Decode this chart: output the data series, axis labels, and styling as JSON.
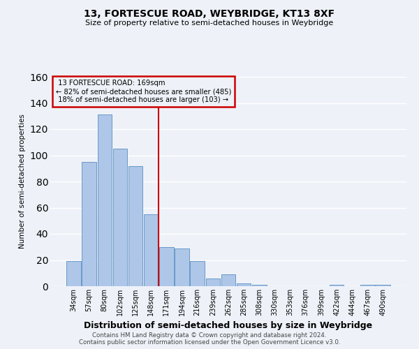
{
  "title1": "13, FORTESCUE ROAD, WEYBRIDGE, KT13 8XF",
  "title2": "Size of property relative to semi-detached houses in Weybridge",
  "xlabel": "Distribution of semi-detached houses by size in Weybridge",
  "ylabel": "Number of semi-detached properties",
  "bar_labels": [
    "34sqm",
    "57sqm",
    "80sqm",
    "102sqm",
    "125sqm",
    "148sqm",
    "171sqm",
    "194sqm",
    "216sqm",
    "239sqm",
    "262sqm",
    "285sqm",
    "308sqm",
    "330sqm",
    "353sqm",
    "376sqm",
    "399sqm",
    "422sqm",
    "444sqm",
    "467sqm",
    "490sqm"
  ],
  "bar_values": [
    19,
    95,
    131,
    105,
    92,
    55,
    30,
    29,
    19,
    6,
    9,
    2,
    1,
    0,
    0,
    0,
    0,
    1,
    0,
    1,
    1
  ],
  "bar_color": "#aec6e8",
  "bar_edge_color": "#5a8fc2",
  "vline_x_idx": 6,
  "pct_smaller": 82,
  "n_smaller": 485,
  "pct_larger": 18,
  "n_larger": 103,
  "annotation_road": "13 FORTESCUE ROAD: 169sqm",
  "ylim": [
    0,
    160
  ],
  "yticks": [
    0,
    20,
    40,
    60,
    80,
    100,
    120,
    140,
    160
  ],
  "bg_color": "#eef2f8",
  "grid_color": "#ffffff",
  "vline_color": "#cc0000",
  "box_edge_color": "#cc0000",
  "footer1": "Contains HM Land Registry data © Crown copyright and database right 2024.",
  "footer2": "Contains public sector information licensed under the Open Government Licence v3.0."
}
